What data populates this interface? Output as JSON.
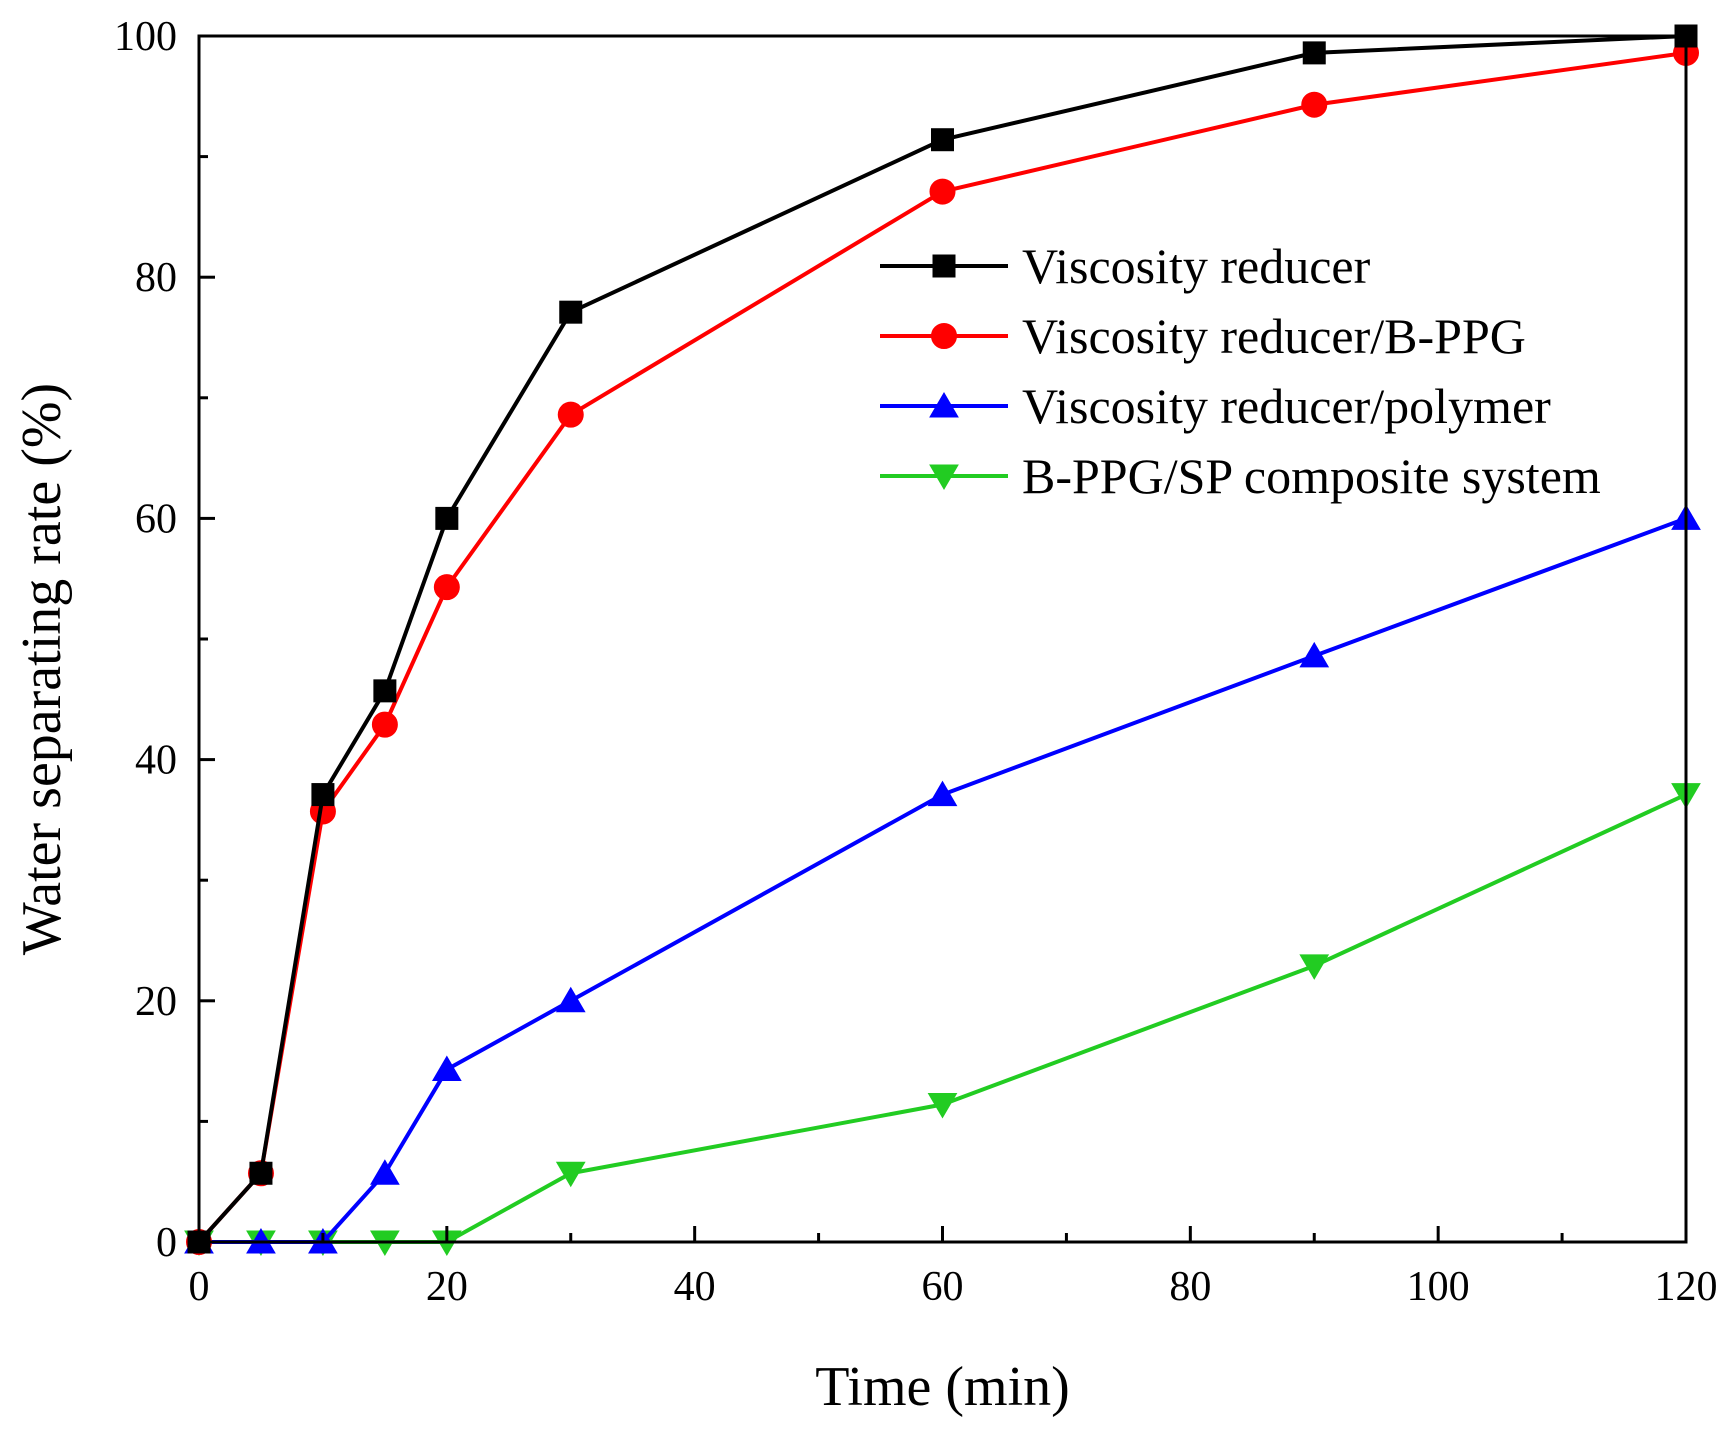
{
  "chart_data": {
    "type": "line",
    "title": "",
    "xlabel": "Time (min)",
    "ylabel": "Water separating rate (%)",
    "xlim": [
      0,
      120
    ],
    "ylim": [
      0,
      100
    ],
    "xticks": [
      0,
      20,
      40,
      60,
      80,
      100,
      120
    ],
    "yticks": [
      0,
      20,
      40,
      60,
      80,
      100
    ],
    "grid": false,
    "legend_position": "top-right",
    "series": [
      {
        "name": "Viscosity reducer",
        "color": "#000000",
        "marker": "square",
        "x": [
          0,
          5,
          10,
          15,
          20,
          30,
          60,
          90,
          120
        ],
        "y": [
          0,
          5.7,
          37.1,
          45.7,
          60.0,
          77.1,
          91.4,
          98.6,
          100.0
        ]
      },
      {
        "name": "Viscosity reducer/B-PPG",
        "color": "#ff0000",
        "marker": "circle",
        "x": [
          0,
          5,
          10,
          15,
          20,
          30,
          60,
          90,
          120
        ],
        "y": [
          0,
          5.7,
          35.7,
          42.9,
          54.3,
          68.6,
          87.1,
          94.3,
          98.6
        ]
      },
      {
        "name": "Viscosity reducer/polymer",
        "color": "#0000ff",
        "marker": "triangle-up",
        "x": [
          0,
          5,
          10,
          15,
          20,
          30,
          60,
          90,
          120
        ],
        "y": [
          0,
          0,
          0,
          5.7,
          14.3,
          20.0,
          37.1,
          48.6,
          60.0
        ]
      },
      {
        "name": "B-PPG/SP composite system",
        "color": "#22cc22",
        "marker": "triangle-down",
        "x": [
          0,
          5,
          10,
          15,
          20,
          30,
          60,
          90,
          120
        ],
        "y": [
          0,
          0,
          0,
          0,
          0,
          5.7,
          11.4,
          22.9,
          37.1
        ]
      }
    ]
  }
}
